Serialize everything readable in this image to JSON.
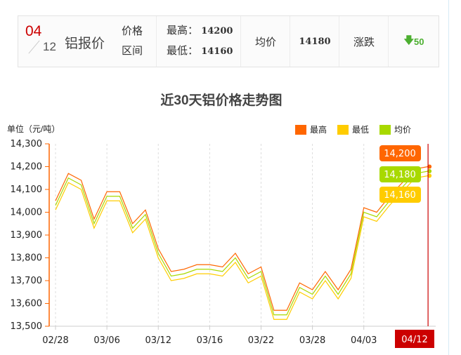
{
  "header": {
    "month": "04",
    "day": "12",
    "title": "铝报价",
    "range_label_1": "价格",
    "range_label_2": "区间",
    "high_label": "最高：",
    "high_value": "14200",
    "low_label": "最低：",
    "low_value": "14160",
    "avg_label": "均价",
    "avg_value": "14180",
    "change_label": "涨跌",
    "change_value": "50",
    "change_icon": "arrow-down-icon"
  },
  "chart_data": {
    "type": "line",
    "title": "近30天铝价格走势图",
    "ylabel": "单位（元/吨）",
    "ylim": [
      13500,
      14300
    ],
    "yticks": [
      "14,300",
      "14,200",
      "14,100",
      "14,000",
      "13,900",
      "13,800",
      "13,700",
      "13,600",
      "13,500"
    ],
    "xticks": [
      {
        "i": 0,
        "label": "02/28"
      },
      {
        "i": 4,
        "label": "03/06"
      },
      {
        "i": 8,
        "label": "03/12"
      },
      {
        "i": 12,
        "label": "03/16"
      },
      {
        "i": 16,
        "label": "03/22"
      },
      {
        "i": 20,
        "label": "03/28"
      },
      {
        "i": 24,
        "label": "04/03"
      },
      {
        "i": 29,
        "label": "04/12"
      }
    ],
    "grid": "vertical-dashed",
    "legend": "top-right",
    "series": [
      {
        "name": "最高",
        "color": "#ff6600",
        "values": [
          14050,
          14170,
          14140,
          13970,
          14090,
          14090,
          13950,
          14010,
          13840,
          13740,
          13750,
          13770,
          13770,
          13760,
          13820,
          13730,
          13760,
          13570,
          13570,
          13690,
          13660,
          13740,
          13660,
          13750,
          14020,
          14000,
          14070,
          14130,
          14190,
          14200
        ]
      },
      {
        "name": "最低",
        "color": "#ffcc00",
        "values": [
          14010,
          14130,
          14100,
          13930,
          14050,
          14050,
          13910,
          13970,
          13800,
          13700,
          13710,
          13730,
          13730,
          13720,
          13780,
          13690,
          13720,
          13530,
          13530,
          13650,
          13620,
          13700,
          13620,
          13710,
          13980,
          13960,
          14030,
          14090,
          14150,
          14160
        ]
      },
      {
        "name": "均价",
        "color": "#a8d900",
        "values": [
          14030,
          14150,
          14120,
          13950,
          14070,
          14070,
          13930,
          13990,
          13820,
          13720,
          13730,
          13750,
          13750,
          13740,
          13800,
          13710,
          13740,
          13550,
          13550,
          13670,
          13640,
          13720,
          13640,
          13730,
          14000,
          13980,
          14050,
          14110,
          14170,
          14180
        ]
      }
    ],
    "tooltip": {
      "high": "14,200",
      "avg": "14,180",
      "low": "14,160",
      "date": "04/12"
    }
  }
}
